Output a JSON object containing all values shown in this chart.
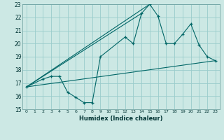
{
  "xlabel": "Humidex (Indice chaleur)",
  "ylabel": "",
  "bg_color": "#cce8e4",
  "grid_color": "#99cccc",
  "line_color": "#006666",
  "xlim": [
    -0.5,
    23.5
  ],
  "ylim": [
    15,
    23
  ],
  "yticks": [
    15,
    16,
    17,
    18,
    19,
    20,
    21,
    22,
    23
  ],
  "xticks": [
    0,
    1,
    2,
    3,
    4,
    5,
    6,
    7,
    8,
    9,
    10,
    11,
    12,
    13,
    14,
    15,
    16,
    17,
    18,
    19,
    20,
    21,
    22,
    23
  ],
  "series1_x": [
    0,
    2,
    3,
    4,
    5,
    6,
    7,
    8,
    9,
    12,
    13,
    14,
    15,
    16,
    17,
    18,
    19,
    20,
    21,
    22,
    23
  ],
  "series1_y": [
    16.7,
    17.3,
    17.5,
    17.5,
    16.3,
    15.9,
    15.5,
    15.5,
    19.0,
    20.5,
    20.0,
    22.3,
    23.0,
    22.1,
    20.0,
    20.0,
    20.7,
    21.5,
    19.9,
    19.0,
    18.7
  ],
  "series2_x": [
    0,
    23
  ],
  "series2_y": [
    16.7,
    18.7
  ],
  "series3_x": [
    0,
    14
  ],
  "series3_y": [
    16.7,
    22.3
  ],
  "series4_x": [
    0,
    15
  ],
  "series4_y": [
    16.7,
    23.0
  ]
}
